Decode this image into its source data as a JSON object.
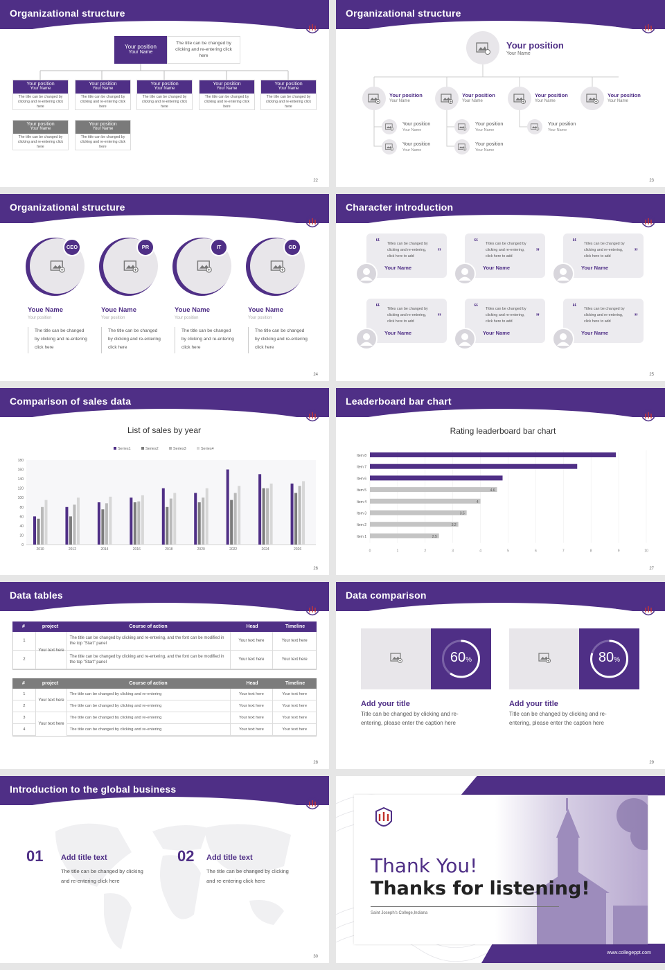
{
  "colors": {
    "accent": "#4f2f86",
    "gray": "#7a7a7a",
    "light": "#e8e6ea"
  },
  "s22": {
    "title": "Organizational structure",
    "top_pos": "Your position",
    "top_name": "Your Name",
    "top_desc": "The title can be changed by clicking and re-entering click here",
    "box_pos": "Your position",
    "box_name": "Your Name",
    "box_desc": "The title can be changed by clicking and re-entering click here",
    "page": "22"
  },
  "s23": {
    "title": "Organizational structure",
    "top_pos": "Your position",
    "top_name": "Your Name",
    "pos": "Your position",
    "name": "Your Name",
    "page": "23"
  },
  "s24": {
    "title": "Organizational structure",
    "roles": [
      "CEO",
      "PR",
      "IT",
      "GD"
    ],
    "name": "Youe Name",
    "pos": "Your position",
    "desc1": "The title can be changed",
    "desc2": "by clicking and re-entering",
    "desc3": "click here",
    "page": "24"
  },
  "s25": {
    "title": "Character introduction",
    "quote1": "Titles can be changed by",
    "quote2": "clicking and re-entering,",
    "quote3": "click here to add",
    "name": "Your Name",
    "page": "25"
  },
  "s26": {
    "title": "Comparison of sales data",
    "page": "26"
  },
  "s27": {
    "title": "Leaderboard bar chart",
    "page": "27"
  },
  "s28": {
    "title": "Data tables",
    "headers": [
      "#",
      "project",
      "Course of action",
      "Head",
      "Timeline"
    ],
    "t1_project": "Your text here",
    "t1_rows": [
      {
        "n": "1",
        "c": "The title can be changed by clicking and re-entering, and the font can be modified in the top \"Start\" panel",
        "h": "Your text here",
        "t": "Your text here"
      },
      {
        "n": "2",
        "c": "The title can be changed by clicking and re-entering, and the font can be modified in the top \"Start\" panel",
        "h": "Your text here",
        "t": "Your text here"
      }
    ],
    "t2_project": "Your text here",
    "t2_rows": [
      {
        "n": "1",
        "c": "The title can be changed by clicking and re-entering",
        "h": "Your text here",
        "t": "Your text here"
      },
      {
        "n": "2",
        "c": "The title can be changed by clicking and re-entering",
        "h": "Your text here",
        "t": "Your text here"
      },
      {
        "n": "3",
        "c": "The title can be changed by clicking and re-entering",
        "h": "Your text here",
        "t": "Your text here"
      },
      {
        "n": "4",
        "c": "The title can be changed by clicking and re-entering",
        "h": "Your text here",
        "t": "Your text here"
      }
    ],
    "page": "28"
  },
  "s29": {
    "title": "Data comparison",
    "p1": "60",
    "p2": "80",
    "pct": "%",
    "add": "Add your title",
    "cap1": "Title can be changed by clicking and re-",
    "cap2": "entering, please enter the caption here",
    "page": "29"
  },
  "s30": {
    "title": "Introduction to the global business",
    "n1": "01",
    "n2": "02",
    "add": "Add title text",
    "d1": "The title can be changed by clicking",
    "d2": "and re-entering click here",
    "page": "30"
  },
  "s31": {
    "thanks": "Thank You!",
    "listening": "Thanks for listening!",
    "college": "Saint Joseph's College,Indiana",
    "url": "www.collegeppt.com"
  },
  "chart_data": [
    {
      "type": "bar",
      "title": "List of sales by year",
      "categories": [
        "2010",
        "2012",
        "2014",
        "2016",
        "2018",
        "2020",
        "2022",
        "2024",
        "2026"
      ],
      "series": [
        {
          "name": "Series1",
          "values": [
            60,
            80,
            90,
            100,
            120,
            110,
            160,
            150,
            130
          ]
        },
        {
          "name": "Series2",
          "values": [
            55,
            60,
            75,
            90,
            80,
            90,
            95,
            120,
            110
          ]
        },
        {
          "name": "Series3",
          "values": [
            80,
            85,
            88,
            92,
            98,
            100,
            110,
            120,
            125
          ]
        },
        {
          "name": "Series4",
          "values": [
            95,
            100,
            102,
            105,
            110,
            120,
            125,
            130,
            135
          ]
        }
      ],
      "yticks": [
        "0",
        "20",
        "40",
        "60",
        "80",
        "100",
        "120",
        "140",
        "160",
        "180"
      ],
      "ylim": [
        0,
        180
      ],
      "legend": "top"
    },
    {
      "type": "bar",
      "orientation": "horizontal",
      "title": "Rating leaderboard bar chart",
      "categories": [
        "Item 8",
        "Item 7",
        "Item 6",
        "Item 5",
        "Item 4",
        "Item 3",
        "Item 2",
        "Item 1"
      ],
      "values": [
        8.9,
        7.5,
        4.8,
        4.6,
        4,
        3.5,
        3.2,
        2.5
      ],
      "labels": [
        "",
        "",
        "",
        "4.6",
        "4",
        "3.5",
        "3.2",
        "2.5"
      ],
      "xticks": [
        "0",
        "1",
        "2",
        "3",
        "4",
        "5",
        "6",
        "7",
        "8",
        "9",
        "10"
      ],
      "xlim": [
        0,
        10
      ]
    },
    {
      "type": "pie",
      "values": [
        60,
        80
      ],
      "labels": [
        "60%",
        "80%"
      ]
    }
  ]
}
